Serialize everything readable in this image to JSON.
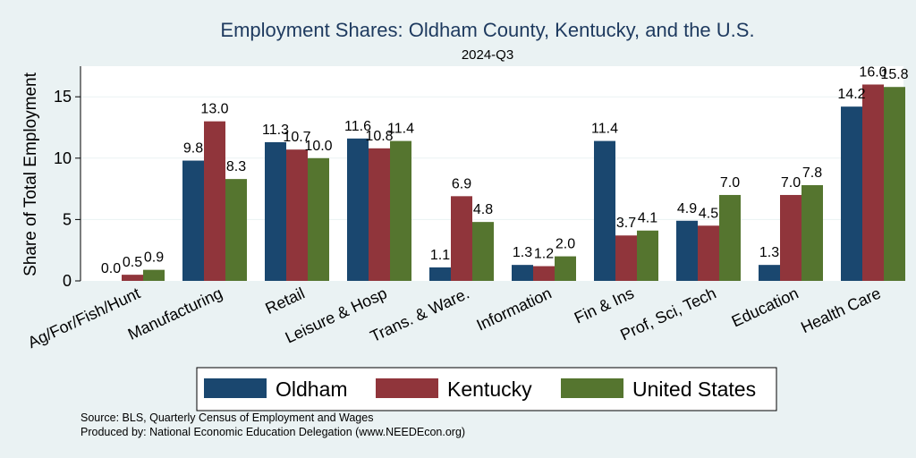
{
  "chart_data": {
    "type": "bar",
    "title": "Employment Shares: Oldham County, Kentucky, and the U.S.",
    "subtitle": "2024-Q3",
    "ylabel": "Share of Total Employment",
    "ylim": [
      0,
      17.5
    ],
    "yticks": [
      0,
      5,
      10,
      15
    ],
    "grid": true,
    "legend_position": "bottom",
    "categories": [
      "Ag/For/Fish/Hunt",
      "Manufacturing",
      "Retail",
      "Leisure & Hosp",
      "Trans. & Ware.",
      "Information",
      "Fin & Ins",
      "Prof, Sci, Tech",
      "Education",
      "Health Care"
    ],
    "series": [
      {
        "name": "Oldham",
        "color": "#1a476f",
        "values": [
          0.0,
          9.8,
          11.3,
          11.6,
          1.1,
          1.3,
          11.4,
          4.9,
          1.3,
          14.2
        ],
        "labels": [
          "0.0",
          "9.8",
          "11.3",
          "11.6",
          "1.1",
          "1.3",
          "11.4",
          "4.9",
          "1.3",
          "14.2"
        ]
      },
      {
        "name": "Kentucky",
        "color": "#90353b",
        "values": [
          0.5,
          13.0,
          10.7,
          10.8,
          6.9,
          1.2,
          3.7,
          4.5,
          7.0,
          16.0
        ],
        "labels": [
          "0.5",
          "13.0",
          "10.7",
          "10.8",
          "6.9",
          "1.2",
          "3.7",
          "4.5",
          "7.0",
          "16.0"
        ]
      },
      {
        "name": "United States",
        "color": "#55752f",
        "values": [
          0.9,
          8.3,
          10.0,
          11.4,
          4.8,
          2.0,
          4.1,
          7.0,
          7.8,
          15.8
        ],
        "labels": [
          "0.9",
          "8.3",
          "10.0",
          "11.4",
          "4.8",
          "2.0",
          "4.1",
          "7.0",
          "7.8",
          "15.8"
        ]
      }
    ],
    "notes": [
      "Source: BLS, Quarterly Census of Employment and Wages",
      "Produced by: National Economic Education Delegation (www.NEEDEcon.org)"
    ]
  }
}
